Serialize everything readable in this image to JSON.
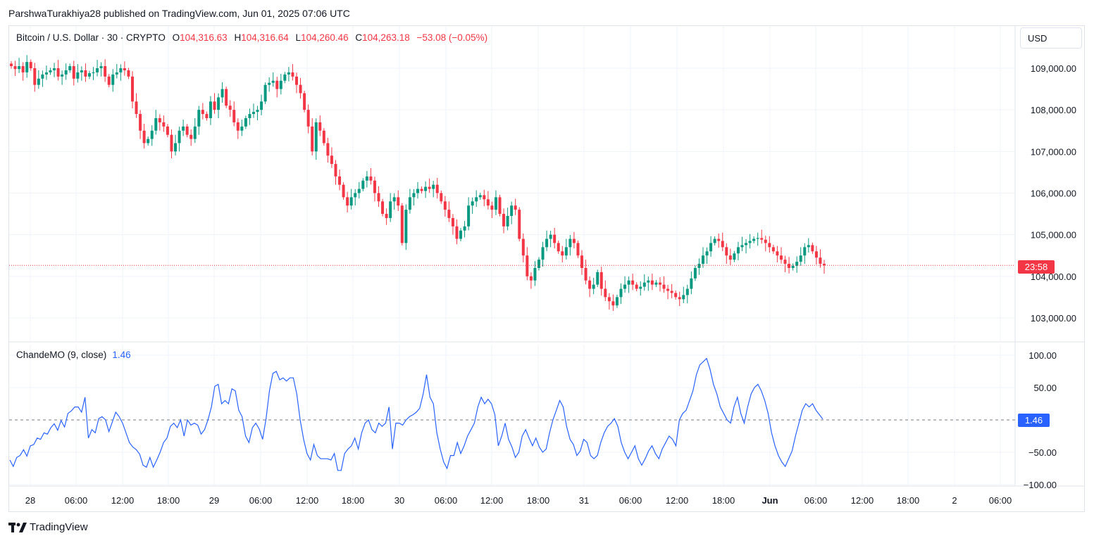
{
  "header": {
    "attribution": "ParshwaTurakhiya28 published on TradingView.com, Jun 01, 2025 07:06 UTC"
  },
  "legend": {
    "symbol": "Bitcoin / U.S. Dollar · 30 · CRYPTO",
    "open_label": "O",
    "open": "104,316.63",
    "high_label": "H",
    "high": "104,316.64",
    "low_label": "L",
    "low": "104,260.46",
    "close_label": "C",
    "close": "104,263.18",
    "change": "−53.08 (−0.05%)"
  },
  "currency_button": "USD",
  "price_tag": "23:58",
  "oscillator": {
    "name": "ChandeMO (9, close)",
    "value": "1.46"
  },
  "footer": {
    "brand": "TradingView"
  },
  "colors": {
    "up": "#089981",
    "down": "#f23645",
    "oscillator": "#2962ff",
    "grid": "#f0f3fa"
  },
  "chart_data": [
    {
      "type": "candlestick",
      "title": "Bitcoin / U.S. Dollar · 30 · CRYPTO",
      "y_axis_ticks": [
        "109,000.00",
        "108,000.00",
        "107,000.00",
        "106,000.00",
        "105,000.00",
        "104,000.00",
        "103,000.00"
      ],
      "y_tick_values": [
        109000,
        108000,
        107000,
        106000,
        105000,
        104000,
        103000
      ],
      "x_axis_ticks": [
        "28",
        "06:00",
        "12:00",
        "18:00",
        "29",
        "06:00",
        "12:00",
        "18:00",
        "30",
        "06:00",
        "12:00",
        "18:00",
        "31",
        "06:00",
        "12:00",
        "18:00",
        "Jun",
        "06:00",
        "12:00",
        "18:00",
        "2",
        "06:00"
      ],
      "ylim": [
        102560,
        109840
      ],
      "last_price": 104263.18,
      "close_series": [
        109050,
        108980,
        109050,
        108900,
        109150,
        109000,
        108600,
        108750,
        108850,
        108900,
        108950,
        109000,
        108800,
        108850,
        108950,
        109050,
        108750,
        108900,
        108950,
        108800,
        108880,
        108900,
        109000,
        109050,
        108800,
        108600,
        108850,
        108900,
        109000,
        108950,
        108800,
        108200,
        107900,
        107500,
        107200,
        107300,
        107500,
        107800,
        107700,
        107600,
        107400,
        107000,
        107200,
        107500,
        107600,
        107400,
        107300,
        107600,
        108000,
        107900,
        107800,
        108200,
        108000,
        108300,
        108500,
        108100,
        108000,
        107700,
        107500,
        107600,
        107800,
        107900,
        107950,
        108000,
        108200,
        108600,
        108650,
        108700,
        108500,
        108700,
        108850,
        108900,
        108800,
        108600,
        108400,
        108000,
        107600,
        107000,
        107700,
        107500,
        107200,
        106900,
        106700,
        106400,
        106200,
        105900,
        105700,
        105900,
        106000,
        106100,
        106300,
        106400,
        106300,
        106000,
        105800,
        105500,
        105400,
        105800,
        105900,
        105700,
        104800,
        105600,
        105900,
        106000,
        106100,
        106050,
        106150,
        106100,
        106200,
        106000,
        105800,
        105600,
        105400,
        105200,
        104900,
        105100,
        105200,
        105700,
        105800,
        105900,
        105950,
        105850,
        105700,
        105600,
        105900,
        105500,
        105200,
        105450,
        105700,
        105600,
        104900,
        104500,
        104000,
        103900,
        104200,
        104400,
        104700,
        104900,
        105000,
        104800,
        104600,
        104500,
        104700,
        104900,
        104800,
        104500,
        104200,
        103900,
        103700,
        103800,
        104100,
        103700,
        103500,
        103400,
        103300,
        103500,
        103700,
        103800,
        103900,
        103800,
        103700,
        103750,
        103850,
        103900,
        103800,
        103850,
        103800,
        103700,
        103650,
        103600,
        103500,
        103450,
        103550,
        103700,
        103950,
        104200,
        104300,
        104500,
        104600,
        104800,
        104900,
        104850,
        104700,
        104500,
        104400,
        104550,
        104700,
        104750,
        104800,
        104850,
        104900,
        104920,
        104880,
        104800,
        104700,
        104600,
        104500,
        104400,
        104300,
        104200,
        104250,
        104350,
        104500,
        104700,
        104750,
        104600,
        104450,
        104300,
        104263
      ]
    },
    {
      "type": "line",
      "title": "ChandeMO (9, close)",
      "y_axis_ticks": [
        "100.00",
        "50.00",
        "−50.00",
        "−100.00"
      ],
      "y_tick_values": [
        100,
        50,
        -50,
        -100
      ],
      "ylim": [
        -100,
        100
      ],
      "zero_line": 0,
      "last_value": 1.46,
      "values": [
        -62,
        -72,
        -58,
        -55,
        -46,
        -56,
        -40,
        -38,
        -28,
        -30,
        -20,
        -22,
        -12,
        -6,
        -16,
        -1,
        -11,
        10,
        14,
        20,
        20,
        12,
        35,
        -28,
        -15,
        -20,
        2,
        5,
        0,
        -18,
        -3,
        12,
        5,
        -5,
        -20,
        -35,
        -42,
        -46,
        -53,
        -70,
        -73,
        -58,
        -73,
        -62,
        -50,
        -35,
        -28,
        -10,
        -5,
        -12,
        0,
        -25,
        0,
        -8,
        -5,
        -8,
        -22,
        -15,
        0,
        20,
        52,
        55,
        25,
        30,
        25,
        48,
        45,
        15,
        5,
        -25,
        -35,
        -12,
        -5,
        -14,
        -30,
        2,
        45,
        72,
        75,
        62,
        65,
        60,
        65,
        65,
        40,
        0,
        -30,
        -52,
        -62,
        -38,
        -55,
        -60,
        -60,
        -60,
        -62,
        -52,
        -78,
        -78,
        -52,
        -45,
        -40,
        -28,
        -45,
        -20,
        -5,
        0,
        -15,
        -20,
        -5,
        -10,
        -5,
        20,
        -45,
        -5,
        -5,
        -8,
        0,
        5,
        8,
        12,
        18,
        40,
        70,
        35,
        25,
        -20,
        -45,
        -65,
        -75,
        -55,
        -55,
        -35,
        -52,
        -40,
        -25,
        -15,
        -5,
        20,
        35,
        25,
        32,
        25,
        8,
        -40,
        -25,
        -5,
        -30,
        -42,
        -58,
        -50,
        -25,
        -15,
        -28,
        -40,
        -28,
        -42,
        -50,
        -45,
        -20,
        0,
        15,
        30,
        20,
        -10,
        -30,
        -38,
        -55,
        -48,
        -30,
        -35,
        -55,
        -60,
        -55,
        -35,
        -20,
        -10,
        -5,
        2,
        -10,
        -35,
        -50,
        -60,
        -50,
        -40,
        -60,
        -70,
        -60,
        -48,
        -40,
        -52,
        -60,
        -45,
        -35,
        -25,
        -30,
        -40,
        0,
        10,
        15,
        30,
        45,
        70,
        85,
        90,
        95,
        78,
        55,
        40,
        20,
        10,
        0,
        -5,
        20,
        35,
        10,
        -5,
        20,
        40,
        50,
        55,
        45,
        30,
        10,
        -20,
        -40,
        -55,
        -65,
        -72,
        -60,
        -48,
        -25,
        -5,
        15,
        25,
        20,
        25,
        15,
        8,
        1.46
      ]
    }
  ]
}
